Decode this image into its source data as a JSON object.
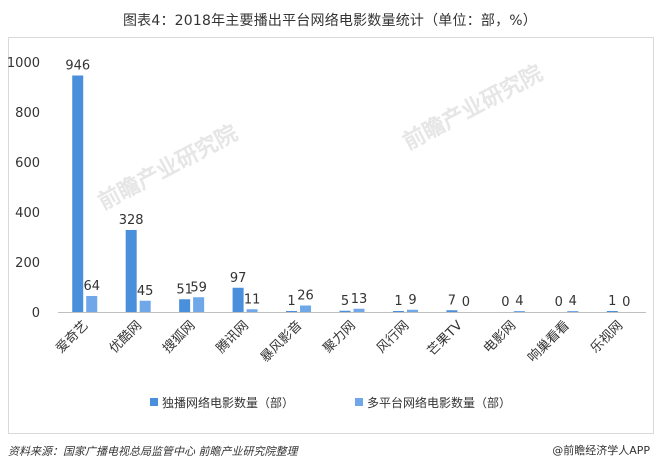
{
  "chart_data": {
    "type": "bar",
    "title": "图表4：2018年主要播出平台网络电影数量统计（单位：部，%）",
    "categories": [
      "爱奇艺",
      "优酷网",
      "搜狐网",
      "腾讯网",
      "暴风影音",
      "聚力网",
      "风行网",
      "芒果TV",
      "电影网",
      "响巢看看",
      "乐视网"
    ],
    "series": [
      {
        "name": "独播网络电影数量（部）",
        "values": [
          946,
          328,
          51,
          97,
          1,
          5,
          1,
          7,
          0,
          0,
          1
        ],
        "color": "#4a8fdc"
      },
      {
        "name": "多平台网络电影数量（部）",
        "values": [
          64,
          45,
          59,
          11,
          26,
          13,
          9,
          0,
          4,
          4,
          0
        ],
        "color": "#6fa7e8"
      }
    ],
    "ylim": [
      0,
      1000
    ],
    "yticks": [
      0,
      200,
      400,
      600,
      800,
      1000
    ],
    "grid": false,
    "legend_position": "bottom"
  },
  "footer": {
    "source": "资料来源：国家广播电视总局监管中心 前瞻产业研究院整理",
    "brand": "@前瞻经济学人APP"
  },
  "watermark": {
    "text": "前瞻产业研究院"
  }
}
